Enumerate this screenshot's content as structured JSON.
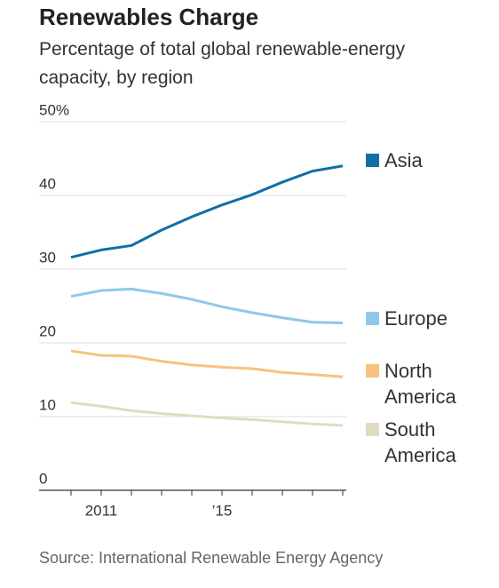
{
  "chart_data": {
    "type": "line",
    "title": "Renewables Charge",
    "subtitle": "Percentage of total global renewable-energy capacity, by region",
    "source": "Source: International Renewable Energy Agency",
    "x": [
      2010,
      2011,
      2012,
      2013,
      2014,
      2015,
      2016,
      2017,
      2018,
      2019
    ],
    "series": [
      {
        "name": "Asia",
        "color": "#0f6fa6",
        "values": [
          31.6,
          32.6,
          33.2,
          35.3,
          37.1,
          38.7,
          40.1,
          41.8,
          43.3,
          44.0
        ]
      },
      {
        "name": "Europe",
        "color": "#8fc8ea",
        "values": [
          26.3,
          27.1,
          27.3,
          26.7,
          25.9,
          24.9,
          24.1,
          23.4,
          22.8,
          22.7
        ]
      },
      {
        "name": "North America",
        "color": "#f7c27f",
        "values": [
          18.9,
          18.3,
          18.2,
          17.5,
          17.0,
          16.7,
          16.5,
          16.0,
          15.7,
          15.4
        ]
      },
      {
        "name": "South America",
        "color": "#e0dcc0",
        "values": [
          11.9,
          11.4,
          10.8,
          10.4,
          10.1,
          9.8,
          9.6,
          9.3,
          9.0,
          8.8
        ]
      }
    ],
    "xlim": [
      2010,
      2019
    ],
    "xticks": [
      2011,
      {
        "value": 2015,
        "label": "’15"
      }
    ],
    "xminor_ticks": [
      2010,
      2011,
      2012,
      2013,
      2014,
      2015,
      2016,
      2017,
      2018,
      2019
    ],
    "ylim": [
      0,
      50
    ],
    "yticks": [
      {
        "value": 50,
        "label": "50%"
      },
      40,
      30,
      20,
      10,
      0
    ],
    "grid": true
  }
}
